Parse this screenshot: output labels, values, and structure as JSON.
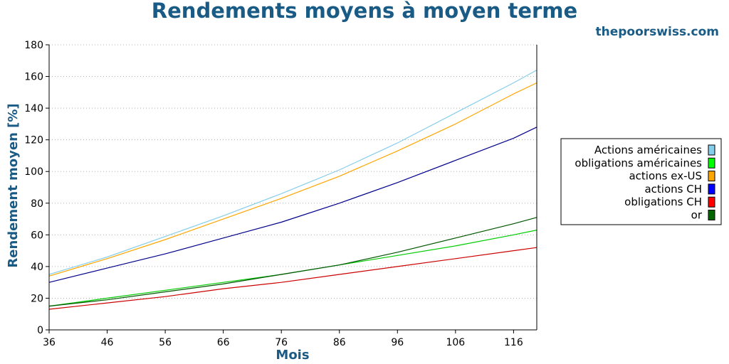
{
  "header": {
    "title": "Rendements moyens à moyen terme",
    "site": "thepoorswiss.com"
  },
  "chart_data": {
    "type": "line",
    "title": "Rendements moyens à moyen terme",
    "xlabel": "Mois",
    "ylabel": "Rendement moyen [%]",
    "xlim": [
      36,
      120
    ],
    "ylim": [
      0,
      180
    ],
    "x_ticks": [
      36,
      46,
      56,
      66,
      76,
      86,
      96,
      106,
      116
    ],
    "y_ticks": [
      0,
      20,
      40,
      60,
      80,
      100,
      120,
      140,
      160,
      180
    ],
    "grid": "horizontal dotted",
    "legend_position": "right",
    "x": [
      36,
      46,
      56,
      66,
      76,
      86,
      96,
      106,
      116,
      120
    ],
    "series": [
      {
        "name": "Actions américaines",
        "line_color": "#87ceeb",
        "swatch_color": "#87ceeb",
        "values": [
          35,
          46,
          59,
          72,
          86,
          101,
          118,
          137,
          156,
          164
        ]
      },
      {
        "name": "obligations américaines",
        "line_color": "#00cc00",
        "swatch_color": "#00ff00",
        "values": [
          15,
          20,
          25,
          30,
          35,
          41,
          47,
          53,
          60,
          63
        ]
      },
      {
        "name": "actions ex-US",
        "line_color": "#ffa500",
        "swatch_color": "#ffa500",
        "values": [
          34,
          45,
          57,
          70,
          83,
          97,
          113,
          130,
          149,
          156
        ]
      },
      {
        "name": "actions CH",
        "line_color": "#00008b",
        "swatch_color": "#0000ff",
        "values": [
          30,
          39,
          48,
          58,
          68,
          80,
          93,
          107,
          121,
          128
        ]
      },
      {
        "name": "obligations CH",
        "line_color": "#cc0000",
        "swatch_color": "#ff0000",
        "values": [
          13,
          17,
          21,
          26,
          30,
          35,
          40,
          45,
          50,
          52
        ]
      },
      {
        "name": "or",
        "line_color": "#005500",
        "swatch_color": "#006400",
        "values": [
          15,
          19,
          24,
          29,
          35,
          41,
          49,
          58,
          67,
          71
        ]
      }
    ]
  }
}
